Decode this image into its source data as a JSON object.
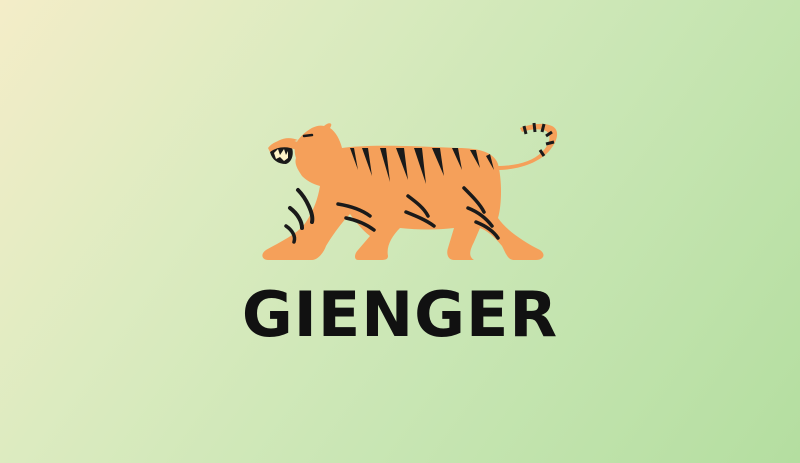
{
  "logo": {
    "brand_name": "GIENGER",
    "icon": "tiger-icon"
  },
  "colors": {
    "tiger_body": "#f5a05a",
    "tiger_stripes": "#1a1a1a",
    "tiger_teeth": "#fff4c8",
    "wordmark": "#111111",
    "background_start": "#f4edc8",
    "background_end": "#b4dea0"
  }
}
